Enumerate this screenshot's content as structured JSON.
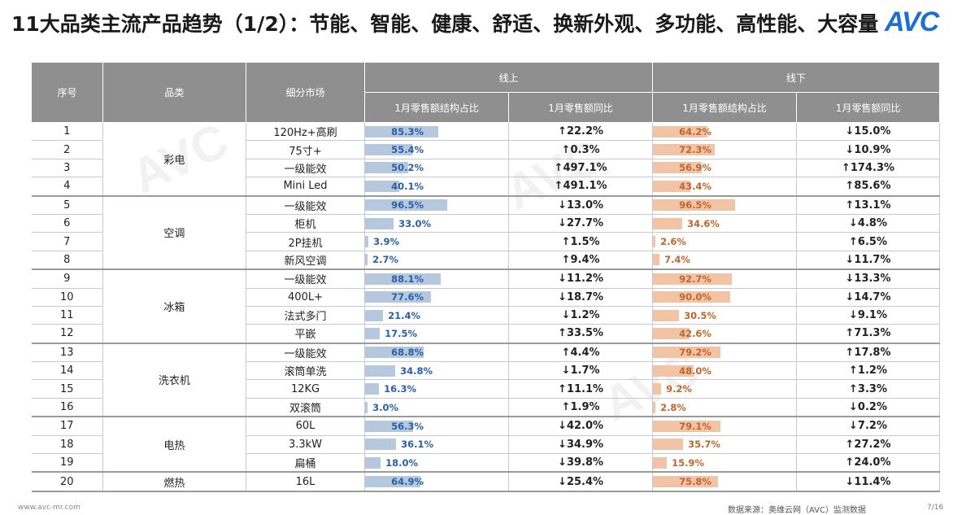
{
  "title": "11大品类主流产品趋势（1/2）：节能、智能、健康、舒适、换新外观、多功能、高性能、大容量",
  "logo": "AVC",
  "colors": {
    "header_bg": "#8f8f8f",
    "online_bar": "#b5c8dd",
    "offline_bar": "#f2c4a6",
    "up": "#2a5ea8",
    "down": "#d62e2e"
  },
  "header": {
    "no": "序号",
    "category": "品类",
    "segment": "细分市场",
    "online": "线上",
    "offline": "线下",
    "share": "1月零售额结构占比",
    "yoy": "1月零售额同比"
  },
  "rows": [
    {
      "no": "1",
      "cat": "彩电",
      "seg": "120Hz+高刷",
      "on_share": 85.3,
      "on_share_label": "85.3%",
      "on_yoy": "↑22.2%",
      "on_dir": "up",
      "off_share": 64.2,
      "off_share_label": "64.2%",
      "off_yoy": "↓15.0%",
      "off_dir": "down"
    },
    {
      "no": "2",
      "cat": "彩电",
      "seg": "75寸+",
      "on_share": 55.4,
      "on_share_label": "55.4%",
      "on_yoy": "↑0.3%",
      "on_dir": "up",
      "off_share": 72.3,
      "off_share_label": "72.3%",
      "off_yoy": "↓10.9%",
      "off_dir": "down"
    },
    {
      "no": "3",
      "cat": "彩电",
      "seg": "一级能效",
      "on_share": 50.2,
      "on_share_label": "50.2%",
      "on_yoy": "↑497.1%",
      "on_dir": "up",
      "off_share": 56.9,
      "off_share_label": "56.9%",
      "off_yoy": "↑174.3%",
      "off_dir": "up"
    },
    {
      "no": "4",
      "cat": "彩电",
      "seg": "Mini Led",
      "on_share": 40.1,
      "on_share_label": "40.1%",
      "on_yoy": "↑491.1%",
      "on_dir": "up",
      "off_share": 43.4,
      "off_share_label": "43.4%",
      "off_yoy": "↑85.6%",
      "off_dir": "up"
    },
    {
      "no": "5",
      "cat": "空调",
      "seg": "一级能效",
      "on_share": 96.5,
      "on_share_label": "96.5%",
      "on_yoy": "↓13.0%",
      "on_dir": "down",
      "off_share": 96.5,
      "off_share_label": "96.5%",
      "off_yoy": "↑13.1%",
      "off_dir": "up"
    },
    {
      "no": "6",
      "cat": "空调",
      "seg": "柜机",
      "on_share": 33.0,
      "on_share_label": "33.0%",
      "on_yoy": "↓27.7%",
      "on_dir": "down",
      "off_share": 34.6,
      "off_share_label": "34.6%",
      "off_yoy": "↓4.8%",
      "off_dir": "down"
    },
    {
      "no": "7",
      "cat": "空调",
      "seg": "2P挂机",
      "on_share": 3.9,
      "on_share_label": "3.9%",
      "on_yoy": "↑1.5%",
      "on_dir": "up",
      "off_share": 2.6,
      "off_share_label": "2.6%",
      "off_yoy": "↑6.5%",
      "off_dir": "up"
    },
    {
      "no": "8",
      "cat": "空调",
      "seg": "新风空调",
      "on_share": 2.7,
      "on_share_label": "2.7%",
      "on_yoy": "↑9.4%",
      "on_dir": "up",
      "off_share": 7.4,
      "off_share_label": "7.4%",
      "off_yoy": "↓11.7%",
      "off_dir": "down"
    },
    {
      "no": "9",
      "cat": "冰箱",
      "seg": "一级能效",
      "on_share": 88.1,
      "on_share_label": "88.1%",
      "on_yoy": "↓11.2%",
      "on_dir": "down",
      "off_share": 92.7,
      "off_share_label": "92.7%",
      "off_yoy": "↓13.3%",
      "off_dir": "down"
    },
    {
      "no": "10",
      "cat": "冰箱",
      "seg": "400L+",
      "on_share": 77.6,
      "on_share_label": "77.6%",
      "on_yoy": "↓18.7%",
      "on_dir": "down",
      "off_share": 90.0,
      "off_share_label": "90.0%",
      "off_yoy": "↓14.7%",
      "off_dir": "down"
    },
    {
      "no": "11",
      "cat": "冰箱",
      "seg": "法式多门",
      "on_share": 21.4,
      "on_share_label": "21.4%",
      "on_yoy": "↓1.2%",
      "on_dir": "down",
      "off_share": 30.5,
      "off_share_label": "30.5%",
      "off_yoy": "↓9.1%",
      "off_dir": "down"
    },
    {
      "no": "12",
      "cat": "冰箱",
      "seg": "平嵌",
      "on_share": 17.5,
      "on_share_label": "17.5%",
      "on_yoy": "↑33.5%",
      "on_dir": "up",
      "off_share": 42.6,
      "off_share_label": "42.6%",
      "off_yoy": "↑71.3%",
      "off_dir": "up"
    },
    {
      "no": "13",
      "cat": "洗衣机",
      "seg": "一级能效",
      "on_share": 68.8,
      "on_share_label": "68.8%",
      "on_yoy": "↑4.4%",
      "on_dir": "up",
      "off_share": 79.2,
      "off_share_label": "79.2%",
      "off_yoy": "↑17.8%",
      "off_dir": "up"
    },
    {
      "no": "14",
      "cat": "洗衣机",
      "seg": "滚筒单洗",
      "on_share": 34.8,
      "on_share_label": "34.8%",
      "on_yoy": "↓1.7%",
      "on_dir": "down",
      "off_share": 48.0,
      "off_share_label": "48.0%",
      "off_yoy": "↑1.2%",
      "off_dir": "up"
    },
    {
      "no": "15",
      "cat": "洗衣机",
      "seg": "12KG",
      "on_share": 16.3,
      "on_share_label": "16.3%",
      "on_yoy": "↑11.1%",
      "on_dir": "up",
      "off_share": 9.2,
      "off_share_label": "9.2%",
      "off_yoy": "↑3.3%",
      "off_dir": "up"
    },
    {
      "no": "16",
      "cat": "洗衣机",
      "seg": "双滚筒",
      "on_share": 3.0,
      "on_share_label": "3.0%",
      "on_yoy": "↑1.9%",
      "on_dir": "up",
      "off_share": 2.8,
      "off_share_label": "2.8%",
      "off_yoy": "↓0.2%",
      "off_dir": "down"
    },
    {
      "no": "17",
      "cat": "电热",
      "seg": "60L",
      "on_share": 56.3,
      "on_share_label": "56.3%",
      "on_yoy": "↓42.0%",
      "on_dir": "down",
      "off_share": 79.1,
      "off_share_label": "79.1%",
      "off_yoy": "↓7.2%",
      "off_dir": "down"
    },
    {
      "no": "18",
      "cat": "电热",
      "seg": "3.3kW",
      "on_share": 36.1,
      "on_share_label": "36.1%",
      "on_yoy": "↓34.9%",
      "on_dir": "down",
      "off_share": 35.7,
      "off_share_label": "35.7%",
      "off_yoy": "↑27.2%",
      "off_dir": "up"
    },
    {
      "no": "19",
      "cat": "电热",
      "seg": "扁桶",
      "on_share": 18.0,
      "on_share_label": "18.0%",
      "on_yoy": "↓39.8%",
      "on_dir": "down",
      "off_share": 15.9,
      "off_share_label": "15.9%",
      "off_yoy": "↑24.0%",
      "off_dir": "up"
    },
    {
      "no": "20",
      "cat": "燃热",
      "seg": "16L",
      "on_share": 64.9,
      "on_share_label": "64.9%",
      "on_yoy": "↓25.4%",
      "on_dir": "down",
      "off_share": 75.8,
      "off_share_label": "75.8%",
      "off_yoy": "↓11.4%",
      "off_dir": "down"
    }
  ],
  "footer": {
    "website": "www.avc-mr.com",
    "source": "数据来源：奥维云网（AVC）监测数据",
    "page": "7/16"
  }
}
